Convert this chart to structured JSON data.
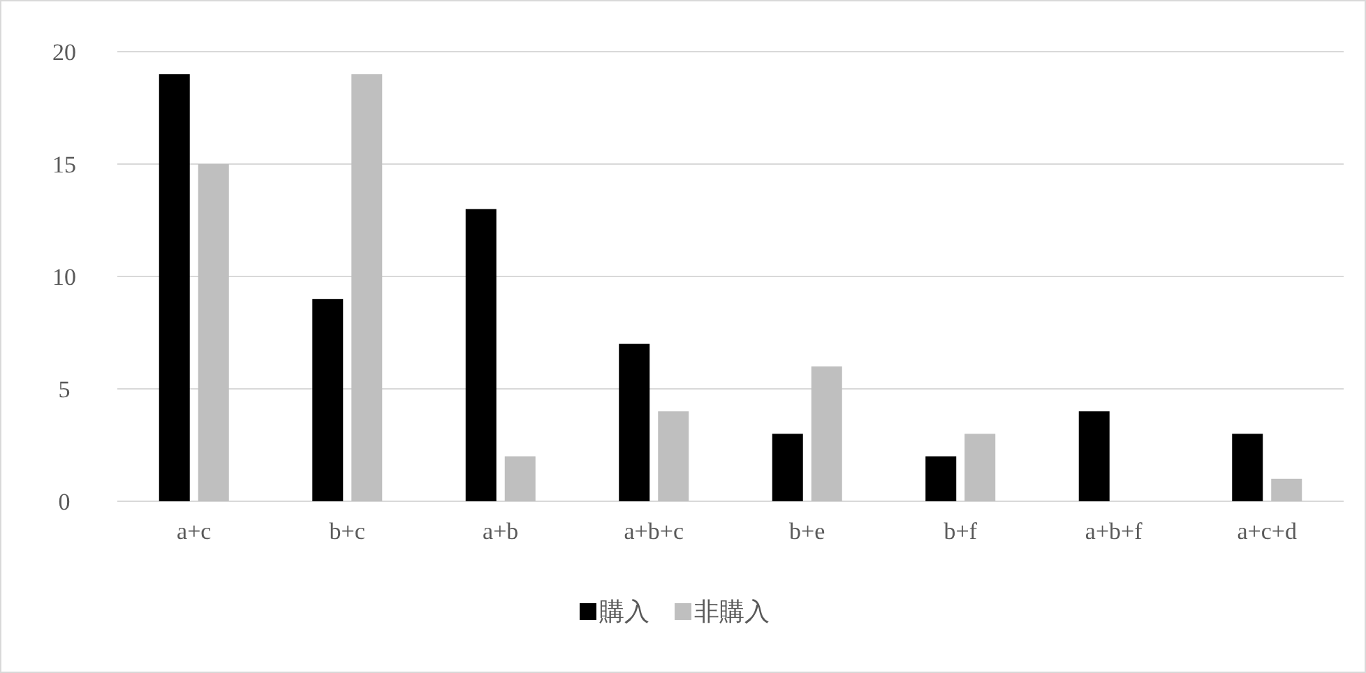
{
  "chart_data": {
    "type": "bar",
    "categories": [
      "a+c",
      "b+c",
      "a+b",
      "a+b+c",
      "b+e",
      "b+f",
      "a+b+f",
      "a+c+d"
    ],
    "series": [
      {
        "name": "購入",
        "color": "#000000",
        "values": [
          19,
          9,
          13,
          7,
          3,
          2,
          4,
          3
        ]
      },
      {
        "name": "非購入",
        "color": "#bfbfbf",
        "values": [
          15,
          19,
          2,
          4,
          6,
          3,
          0,
          1
        ]
      }
    ],
    "ylim": [
      0,
      20
    ],
    "yticks": [
      0,
      5,
      10,
      15,
      20
    ],
    "grid": "y",
    "legend": "bottom"
  }
}
